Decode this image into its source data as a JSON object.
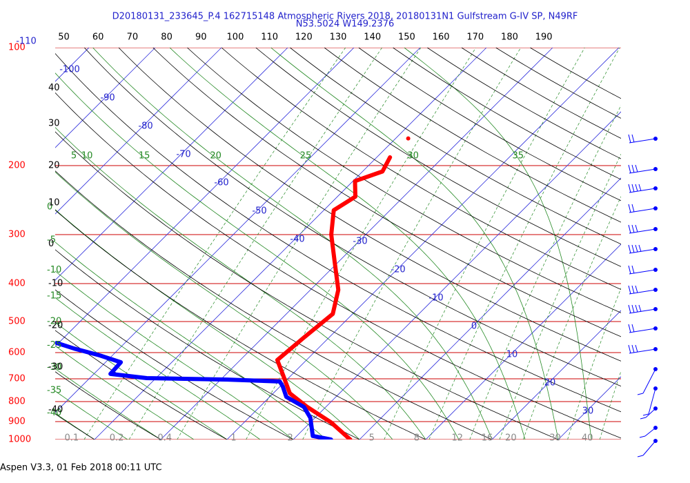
{
  "chart_data": {
    "type": "skewt",
    "title": "D20180131_233645_P.4 162715148 Atmospheric Rivers 2018, 20180131N1 Gulfstream G-IV SP, N49RF",
    "subtitle": "N53.5024 W149.2376",
    "footer": "Aspen V3.3, 01 Feb 2018  00:11 UTC",
    "yscale": "log",
    "ylim": [
      1000,
      100
    ],
    "yticks": [
      100,
      200,
      300,
      400,
      500,
      600,
      700,
      800,
      900,
      1000
    ],
    "isotherms": [
      -110,
      -100,
      -90,
      -80,
      -70,
      -60,
      -50,
      -40,
      -30,
      -20,
      -10,
      0,
      10,
      20,
      30
    ],
    "dry_adiabats_left": [
      40,
      30,
      20,
      10,
      0,
      -10,
      -20,
      -30,
      -40
    ],
    "dry_adiabats_top": [
      50,
      60,
      70,
      80,
      90,
      100,
      110,
      120,
      130,
      140,
      150,
      160,
      170,
      180,
      190
    ],
    "moist_adiabats_top": [
      5,
      10,
      15,
      20,
      25,
      30,
      35
    ],
    "moist_adiabats_left": [
      0,
      -5,
      -10,
      -15,
      -20,
      -25,
      -30,
      -35,
      -40
    ],
    "mixing_ratios": [
      0.1,
      0.2,
      0.4,
      1,
      2,
      5,
      8,
      12,
      16,
      20,
      30,
      40
    ],
    "series": [
      {
        "color": "#ff0000",
        "pressure": [
          1000,
          904,
          826,
          762,
          688,
          627,
          551,
          478,
          415,
          353,
          300,
          260,
          240,
          219,
          207,
          190.5,
          null,
          170.5
        ],
        "values": [
          -1.4,
          -6.9,
          -12.8,
          -17.5,
          -21.1,
          -24.4,
          -23.8,
          -23.0,
          -25.8,
          -30.5,
          -35.2,
          -38.5,
          -37.3,
          -39.7,
          -37.0,
          -38.0,
          null,
          -38.1
        ]
      },
      {
        "color": "#0000ff",
        "pressure": [
          1000,
          979,
          880,
          826,
          778,
          732,
          711,
          703,
          697,
          680,
          635,
          610,
          586,
          567
        ],
        "values": [
          -4.3,
          -7.6,
          -10.7,
          -13.3,
          -17.5,
          -19.6,
          -20.8,
          -29.0,
          -41.4,
          -47.5,
          -47.7,
          -51.9,
          -56.8,
          -60.3
        ]
      }
    ]
  }
}
